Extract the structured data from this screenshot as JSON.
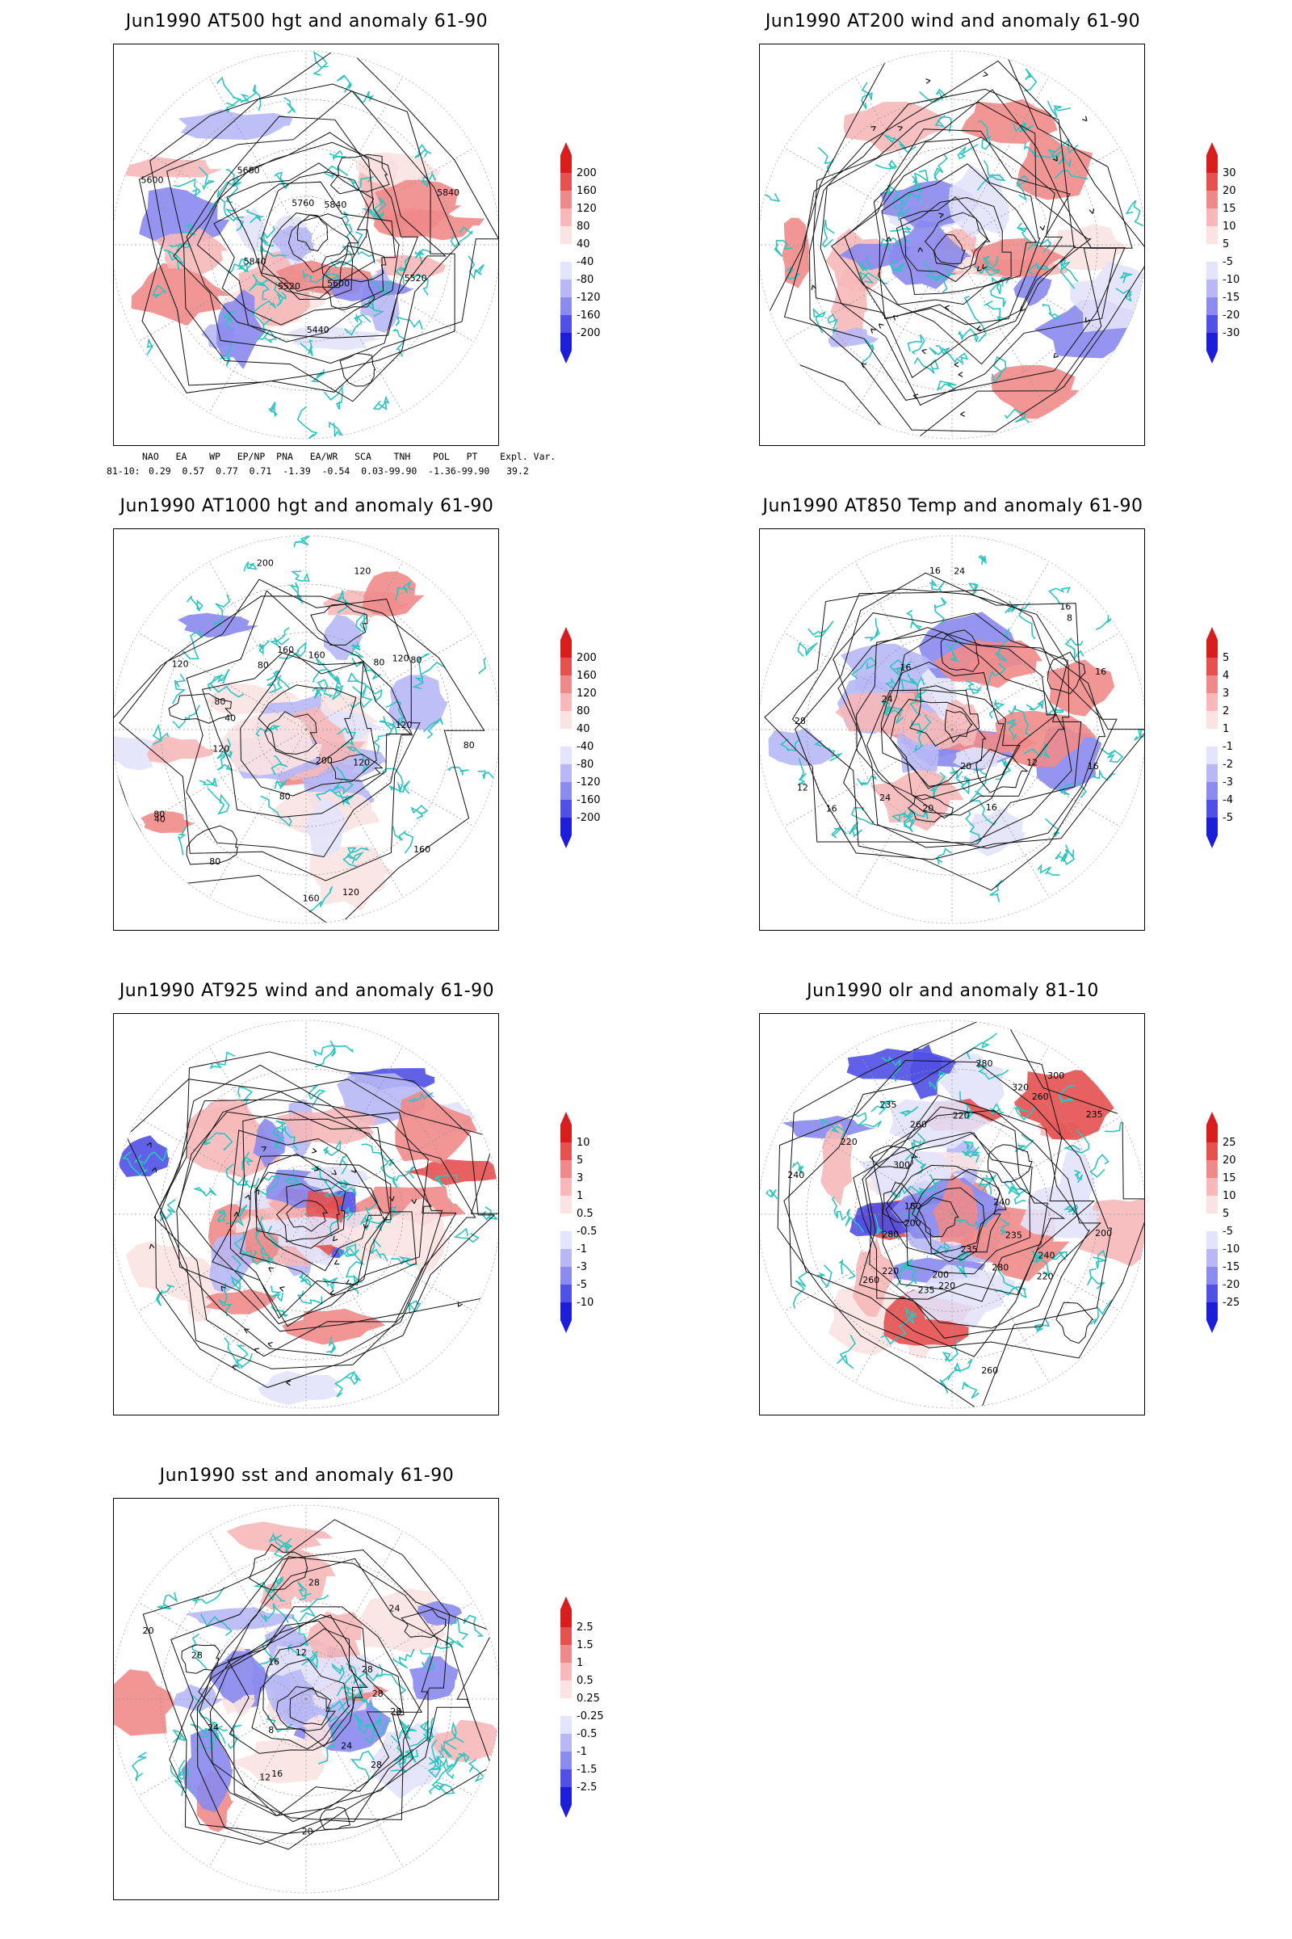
{
  "panels": [
    {
      "id": "p1",
      "title": "Jun1990 AT500 hgt and anomaly 61-90",
      "colorbar": [
        "200",
        "160",
        "120",
        "80",
        "40",
        "-40",
        "-80",
        "-120",
        "-160",
        "-200"
      ],
      "contour_labels": [
        "5520",
        "5600",
        "5440",
        "5520",
        "5840",
        "5600",
        "5680",
        "5760",
        "5840",
        "5840"
      ],
      "field": "hgt500"
    },
    {
      "id": "p2",
      "title": "Jun1990 AT200 wind and anomaly 61-90",
      "colorbar": [
        "30",
        "20",
        "15",
        "10",
        "5",
        "-5",
        "-10",
        "-15",
        "-20",
        "-30"
      ],
      "contour_labels": [],
      "field": "wind200"
    },
    {
      "id": "p3",
      "title": "Jun1990 AT1000 hgt and anomaly 61-90",
      "colorbar": [
        "200",
        "160",
        "120",
        "80",
        "40",
        "-40",
        "-80",
        "-120",
        "-160",
        "-200"
      ],
      "contour_labels": [
        "80",
        "120",
        "160",
        "200",
        "120",
        "160",
        "80",
        "80",
        "40",
        "80",
        "120",
        "40",
        "80",
        "120",
        "80",
        "200",
        "160",
        "160",
        "120",
        "80",
        "120",
        "80",
        "120"
      ],
      "field": "hgt1000"
    },
    {
      "id": "p4",
      "title": "Jun1990 AT850 Temp and anomaly 61-90",
      "colorbar": [
        "5",
        "4",
        "3",
        "2",
        "1",
        "-1",
        "-2",
        "-3",
        "-4",
        "-5"
      ],
      "contour_labels": [
        "16",
        "12",
        "16",
        "20",
        "20",
        "24",
        "16",
        "12",
        "28",
        "24",
        "16",
        "16",
        "24",
        "16",
        "8",
        "16"
      ],
      "field": "t850"
    },
    {
      "id": "p5",
      "title": "Jun1990 AT925 wind and anomaly 61-90",
      "colorbar": [
        "10",
        "5",
        "3",
        "1",
        "0.5",
        "-0.5",
        "-1",
        "-3",
        "-5",
        "-10"
      ],
      "contour_labels": [],
      "field": "wind925"
    },
    {
      "id": "p6",
      "title": "Jun1990 olr and anomaly 81-10",
      "colorbar": [
        "25",
        "20",
        "15",
        "10",
        "5",
        "-5",
        "-10",
        "-15",
        "-20",
        "-25"
      ],
      "contour_labels": [
        "235",
        "240",
        "220",
        "280",
        "235",
        "260",
        "200",
        "220",
        "235",
        "220",
        "260",
        "280",
        "200",
        "180",
        "240",
        "220",
        "300",
        "235",
        "260",
        "220",
        "280",
        "320",
        "300",
        "260",
        "235",
        "240",
        "200"
      ],
      "field": "olr"
    },
    {
      "id": "p7",
      "title": "Jun1990 sst and anomaly 61-90",
      "colorbar": [
        "2.5",
        "1.5",
        "1",
        "0.5",
        "0.25",
        "-0.25",
        "-0.5",
        "-1",
        "-1.5",
        "-2.5"
      ],
      "contour_labels": [
        "28",
        "28",
        "24",
        "20",
        "16",
        "12",
        "8",
        "24",
        "28",
        "20",
        "16",
        "12",
        "28",
        "24",
        "28",
        "28"
      ],
      "field": "sst"
    }
  ],
  "teleconnections": {
    "header": "NAO   EA    WP   EP/NP  PNA   EA/WR   SCA    TNH    POL   PT    Expl. Var.",
    "row_label": "81-10:",
    "values": "0.29  0.57  0.77  0.71  -1.39  -0.54  0.03-99.90  -1.36-99.90   39.2"
  },
  "colors": {
    "coast": "#2ec4c0",
    "pos": [
      "#fbe3e3",
      "#f6b8b8",
      "#ef8a8a",
      "#e65050",
      "#d91c1c"
    ],
    "neg": [
      "#e3e3fb",
      "#b8b8f6",
      "#8a8aef",
      "#5050e6",
      "#1c1cd9"
    ]
  }
}
